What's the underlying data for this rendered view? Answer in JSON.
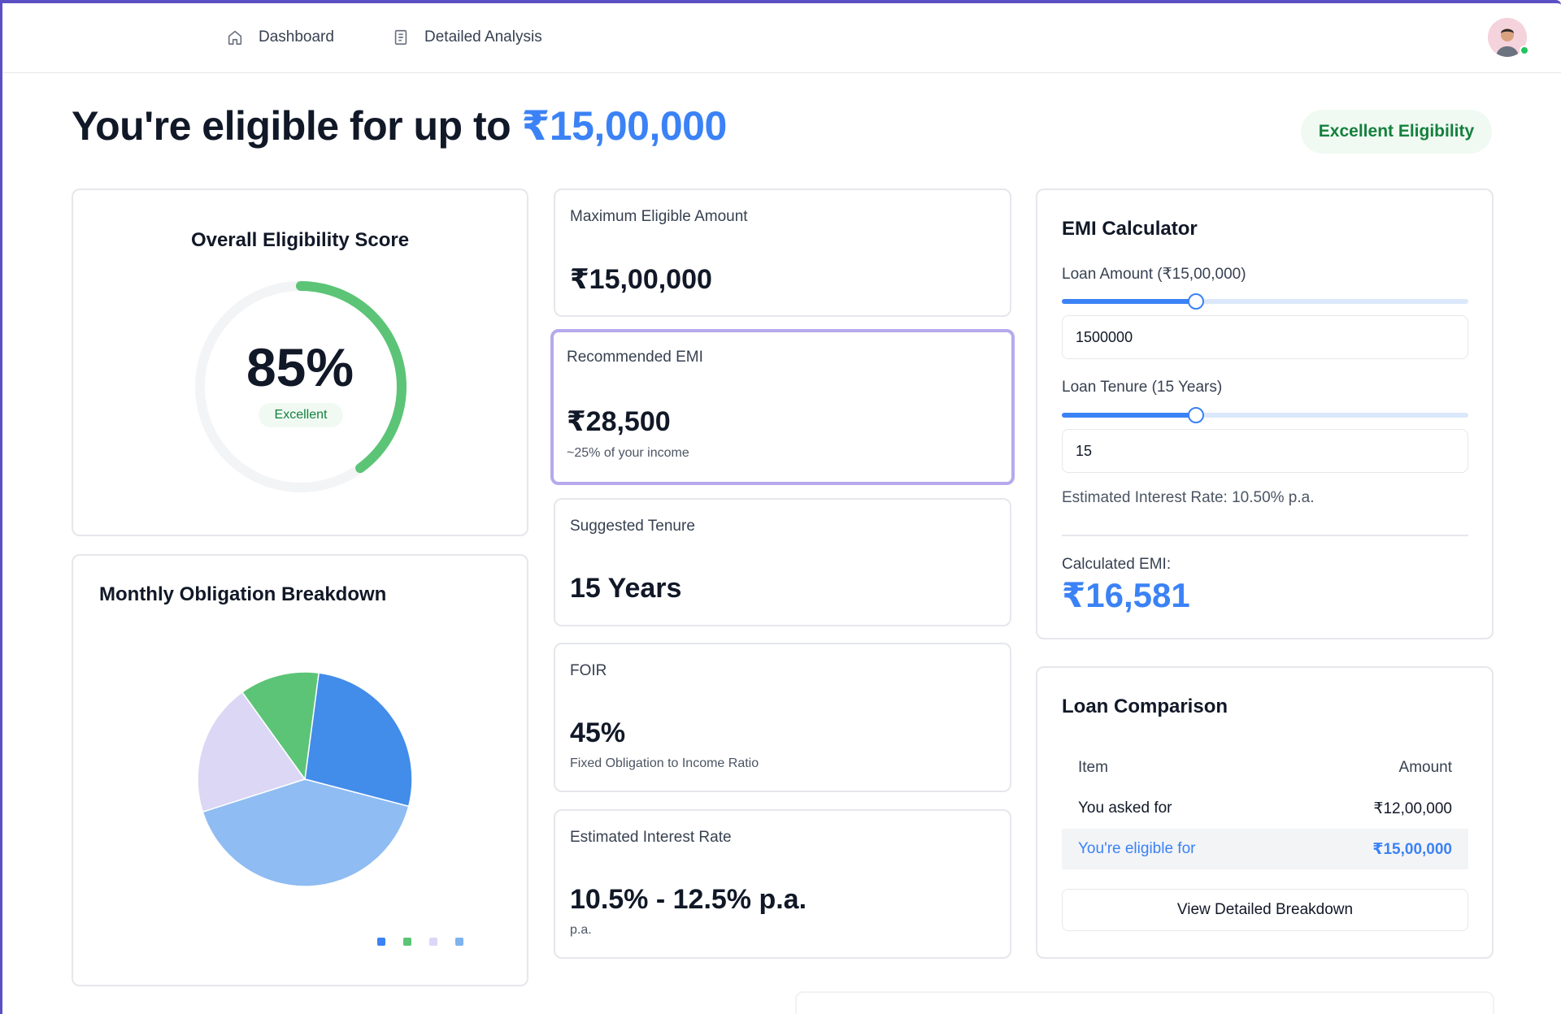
{
  "nav": {
    "items": [
      {
        "label": "Dashboard",
        "icon": "home-icon"
      },
      {
        "label": "Detailed Analysis",
        "icon": "document-icon"
      }
    ]
  },
  "header": {
    "headline_prefix": "You're eligible for up to ",
    "headline_amount": "₹15,00,000",
    "badge": "Excellent Eligibility"
  },
  "score": {
    "title": "Overall Eligibility Score",
    "percent": 85,
    "percent_label": "85%",
    "rating": "Excellent",
    "colors": {
      "track": "#f3f4f6",
      "progress": "#5cc476"
    }
  },
  "breakdown": {
    "title": "Monthly Obligation Breakdown",
    "legend_colors": [
      "#3b82f6",
      "#5cc476",
      "#dcd6f7",
      "#7fb2f0"
    ]
  },
  "chart_data": {
    "type": "pie",
    "slices": [
      {
        "value": 27,
        "color": "#428cea"
      },
      {
        "value": 41,
        "color": "#8fbcf2"
      },
      {
        "value": 20,
        "color": "#dbd7f5"
      },
      {
        "value": 12,
        "color": "#5cc476"
      }
    ]
  },
  "stats": [
    {
      "label": "Maximum Eligible Amount",
      "value": "₹15,00,000",
      "sub": ""
    },
    {
      "label": "Recommended EMI",
      "value": "₹28,500",
      "sub": "~25% of your income"
    },
    {
      "label": "Suggested Tenure",
      "value": "15 Years",
      "sub": ""
    },
    {
      "label": "FOIR",
      "value": "45%",
      "sub": "Fixed Obligation to Income Ratio"
    },
    {
      "label": "Estimated Interest Rate",
      "value": "10.5% - 12.5% p.a.",
      "sub": "p.a."
    }
  ],
  "emi": {
    "title": "EMI Calculator",
    "amount_label": "Loan Amount (₹15,00,000)",
    "amount_value": "1500000",
    "amount_slider_fraction": 0.33,
    "tenure_label": "Loan Tenure (15 Years)",
    "tenure_value": "15",
    "tenure_slider_fraction": 0.33,
    "rate_text": "Estimated Interest Rate: 10.50% p.a.",
    "calc_label": "Calculated EMI:",
    "calc_value": "₹16,581"
  },
  "compare": {
    "title": "Loan Comparison",
    "col_item": "Item",
    "col_amount": "Amount",
    "rows": [
      {
        "item": "You asked for",
        "amount": "₹12,00,000"
      },
      {
        "item": "You're eligible for",
        "amount": "₹15,00,000"
      }
    ],
    "button": "View Detailed Breakdown"
  }
}
